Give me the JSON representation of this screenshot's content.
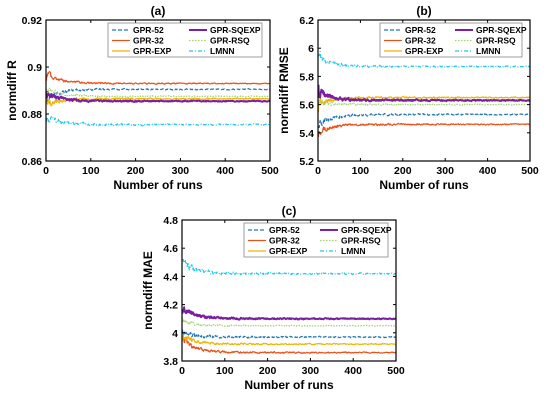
{
  "legend_colors": {
    "GPR-52": "#1f77b4",
    "GPR-32": "#e8531a",
    "GPR-EXP": "#f0b400",
    "GPR-SQEXP": "#7b1fa2",
    "GPR-RSQ": "#9fd36b",
    "LMNN": "#1ec8e8"
  },
  "legend_styles": {
    "GPR-52": "dashed",
    "GPR-32": "solid",
    "GPR-EXP": "solid",
    "GPR-SQEXP": "solid-thick",
    "GPR-RSQ": "dotted",
    "LMNN": "dashdot"
  },
  "chart_data": [
    {
      "type": "line",
      "title": "(a)",
      "xlabel": "Number of runs",
      "ylabel": "normdiff R",
      "xlim": [
        0,
        500
      ],
      "ylim": [
        0.86,
        0.92
      ],
      "xticks": [
        0,
        100,
        200,
        300,
        400,
        500
      ],
      "yticks": [
        0.86,
        0.88,
        0.9,
        0.92
      ],
      "ytick_labels": [
        "0.86",
        "0.88",
        "0.9",
        "0.92"
      ],
      "legend_position": "top",
      "series": [
        {
          "name": "GPR-52",
          "final": 0.8905,
          "start": 0.887,
          "amp": 0.006
        },
        {
          "name": "GPR-32",
          "final": 0.893,
          "start": 0.897,
          "amp": 0.006
        },
        {
          "name": "GPR-EXP",
          "final": 0.8865,
          "start": 0.884,
          "amp": 0.007
        },
        {
          "name": "GPR-SQEXP",
          "final": 0.8855,
          "start": 0.889,
          "amp": 0.006
        },
        {
          "name": "GPR-RSQ",
          "final": 0.8875,
          "start": 0.891,
          "amp": 0.005
        },
        {
          "name": "LMNN",
          "final": 0.8755,
          "start": 0.879,
          "amp": 0.008
        }
      ]
    },
    {
      "type": "line",
      "title": "(b)",
      "xlabel": "Number of runs",
      "ylabel": "normdiff RMSE",
      "xlim": [
        0,
        500
      ],
      "ylim": [
        5.2,
        6.2
      ],
      "xticks": [
        0,
        100,
        200,
        300,
        400,
        500
      ],
      "yticks": [
        5.2,
        5.4,
        5.6,
        5.8,
        6.0,
        6.2
      ],
      "ytick_labels": [
        "5.2",
        "5.4",
        "5.6",
        "5.8",
        "6",
        "6.2"
      ],
      "legend_position": "top",
      "series": [
        {
          "name": "GPR-52",
          "final": 5.53,
          "start": 5.45,
          "amp": 0.12
        },
        {
          "name": "GPR-32",
          "final": 5.46,
          "start": 5.4,
          "amp": 0.12
        },
        {
          "name": "GPR-EXP",
          "final": 5.65,
          "start": 5.6,
          "amp": 0.12
        },
        {
          "name": "GPR-SQEXP",
          "final": 5.63,
          "start": 5.7,
          "amp": 0.12
        },
        {
          "name": "GPR-RSQ",
          "final": 5.6,
          "start": 5.62,
          "amp": 0.1
        },
        {
          "name": "LMNN",
          "final": 5.87,
          "start": 5.95,
          "amp": 0.12
        }
      ]
    },
    {
      "type": "line",
      "title": "(c)",
      "xlabel": "Number of runs",
      "ylabel": "normdiff MAE",
      "xlim": [
        0,
        500
      ],
      "ylim": [
        3.8,
        4.8
      ],
      "xticks": [
        0,
        100,
        200,
        300,
        400,
        500
      ],
      "yticks": [
        3.8,
        4.0,
        4.2,
        4.4,
        4.6,
        4.8
      ],
      "ytick_labels": [
        "3.8",
        "4",
        "4.2",
        "4.4",
        "4.6",
        "4.8"
      ],
      "legend_position": "top",
      "series": [
        {
          "name": "GPR-52",
          "final": 3.97,
          "start": 4.0,
          "amp": 0.12
        },
        {
          "name": "GPR-32",
          "final": 3.86,
          "start": 3.95,
          "amp": 0.12
        },
        {
          "name": "GPR-EXP",
          "final": 3.92,
          "start": 3.98,
          "amp": 0.1
        },
        {
          "name": "GPR-SQEXP",
          "final": 4.1,
          "start": 4.18,
          "amp": 0.1
        },
        {
          "name": "GPR-RSQ",
          "final": 4.05,
          "start": 4.08,
          "amp": 0.08
        },
        {
          "name": "LMNN",
          "final": 4.42,
          "start": 4.5,
          "amp": 0.15
        }
      ]
    }
  ]
}
